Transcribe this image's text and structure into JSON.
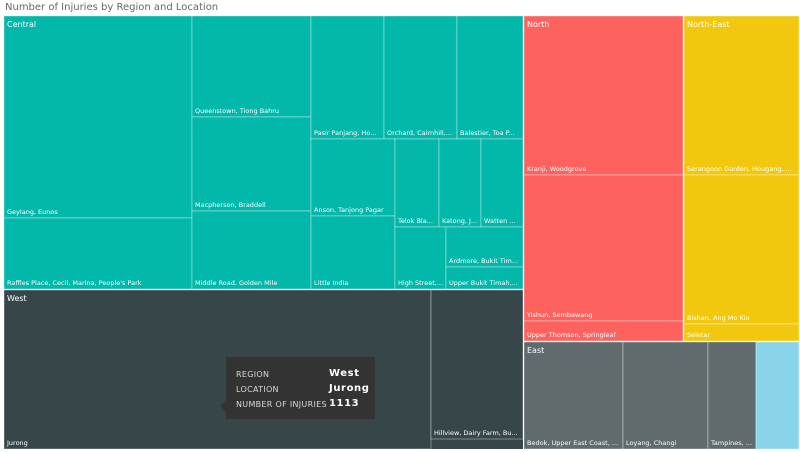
{
  "chart_data": {
    "type": "treemap",
    "title": "Number of Injuries by Region and Location",
    "regions": [
      {
        "name": "Central",
        "color": "#01b8aa",
        "children": [
          {
            "name": "Geylang, Eunos"
          },
          {
            "name": "Raffles Place, Cecil, Marina, People's Park"
          },
          {
            "name": "Queenstown, Tiong Bahru"
          },
          {
            "name": "Macpherson, Braddell"
          },
          {
            "name": "Middle Road, Golden Mile"
          },
          {
            "name": "Pasir Panjang, Ho..."
          },
          {
            "name": "Orchard, Cairnhill,..."
          },
          {
            "name": "Balestier, Toa P..."
          },
          {
            "name": "Anson, Tanjong Pagar"
          },
          {
            "name": "Little India"
          },
          {
            "name": "Telok Bla..."
          },
          {
            "name": "Katong, J..."
          },
          {
            "name": "Watten ..."
          },
          {
            "name": "High Street,..."
          },
          {
            "name": "Ardmore, Bukit Tim..."
          },
          {
            "name": "Upper Bukit Timah,..."
          }
        ]
      },
      {
        "name": "North",
        "color": "#fd625e",
        "children": [
          {
            "name": "Kranji, Woodgrove"
          },
          {
            "name": "Yishun, Sembawang"
          },
          {
            "name": "Upper Thomson, Springleaf"
          }
        ]
      },
      {
        "name": "North-East",
        "color": "#f2c80f",
        "children": [
          {
            "name": "Serangoon Garden, Hougang, ..."
          },
          {
            "name": "Bishan, Ang Mo Kio"
          },
          {
            "name": "Seletar"
          }
        ]
      },
      {
        "name": "West",
        "color": "#374649",
        "children": [
          {
            "name": "Jurong",
            "value": 1113
          },
          {
            "name": "Hillview, Dairy Farm, Bu..."
          }
        ]
      },
      {
        "name": "East",
        "color": "#5f6b6d",
        "children": [
          {
            "name": "Bedok, Upper East Coast, ..."
          },
          {
            "name": "Loyang, Changi"
          },
          {
            "name": "Tampines, ..."
          },
          {
            "name": ""
          }
        ]
      }
    ]
  },
  "tooltip": {
    "region_label": "REGION",
    "region_value": "West",
    "location_label": "LOCATION",
    "location_value": "Jurong",
    "count_label": "NUMBER OF INJURIES",
    "count_value": "1113"
  },
  "colors": {
    "light_blue": "#8ad4eb"
  }
}
